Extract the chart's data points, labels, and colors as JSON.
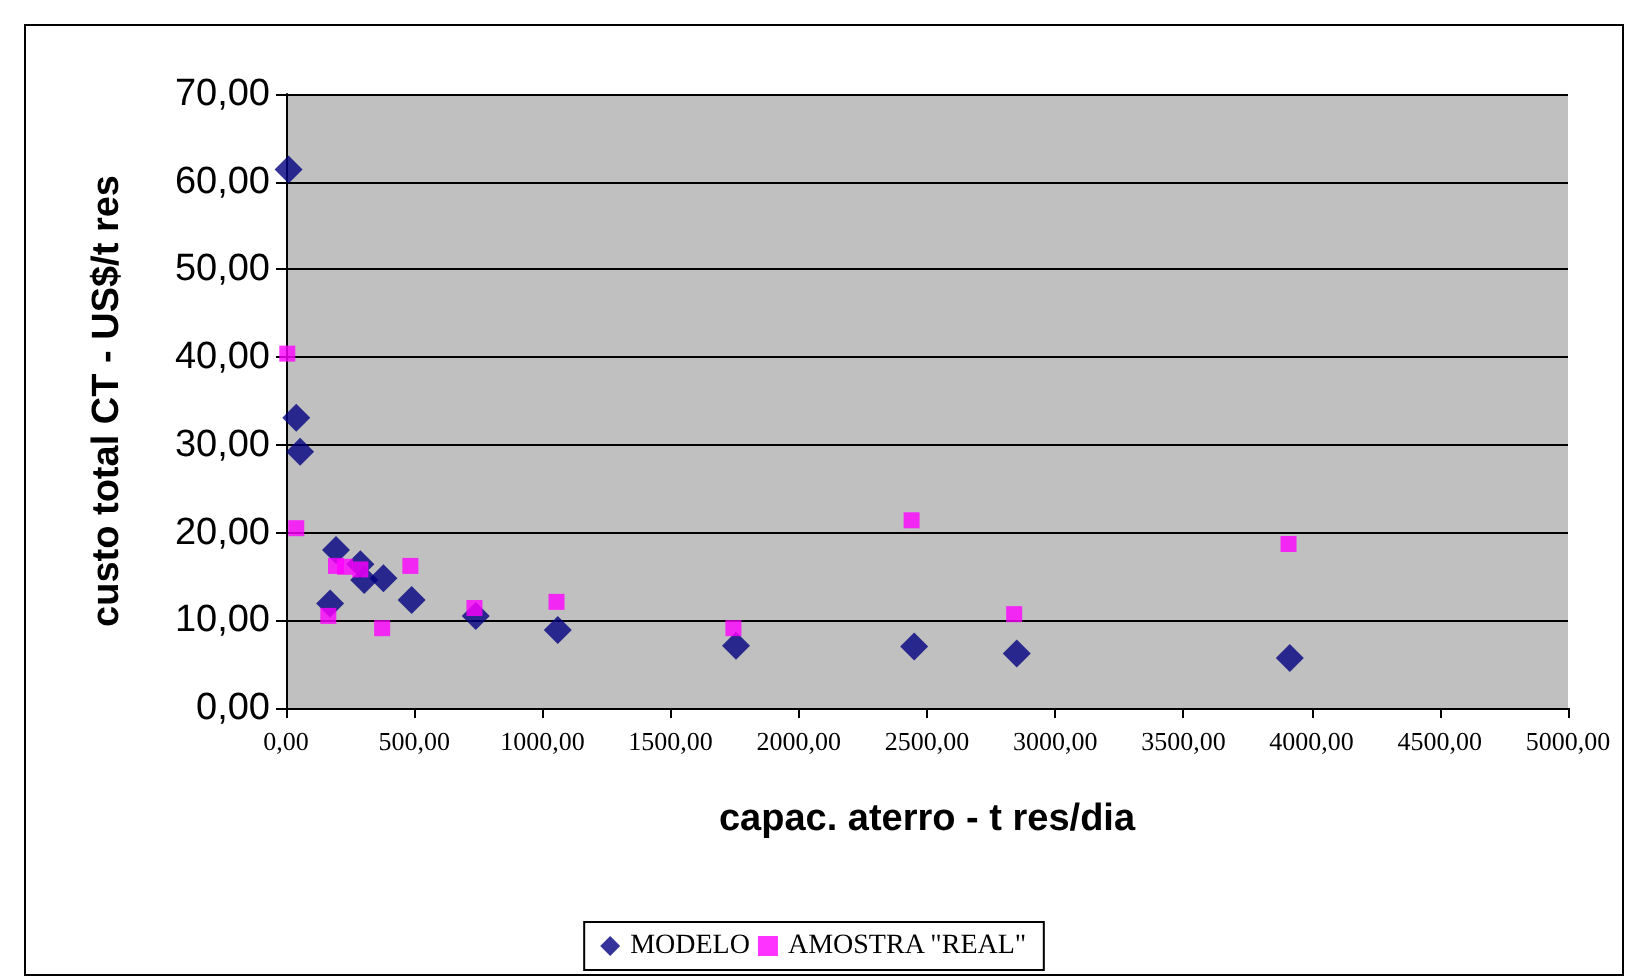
{
  "chart_data": {
    "type": "scatter",
    "xlabel": "capac. aterro - t res/dia",
    "ylabel": "custo total CT - US$/t res",
    "series": [
      {
        "name": "MODELO",
        "color": "#000080",
        "marker": "diamond",
        "x": [
          10,
          40,
          55,
          195,
          172,
          290,
          305,
          380,
          490,
          740,
          1060,
          1755,
          2450,
          2850,
          3915
        ],
        "values": [
          61.4,
          33.1,
          29.2,
          18.0,
          11.9,
          16.4,
          14.6,
          14.8,
          12.3,
          10.5,
          8.9,
          7.1,
          7.0,
          6.2,
          5.7
        ]
      },
      {
        "name": "AMOSTRA \"REAL\"",
        "color": "#ff00ff",
        "marker": "square",
        "x": [
          5,
          40,
          195,
          230,
          290,
          485,
          165,
          375,
          735,
          1055,
          1745,
          2440,
          2840,
          3910
        ],
        "values": [
          40.4,
          20.5,
          16.2,
          16.1,
          15.8,
          16.2,
          10.5,
          9.1,
          11.4,
          12.1,
          9.1,
          21.4,
          10.7,
          18.7
        ]
      }
    ],
    "xlim": [
      0,
      5000
    ],
    "xticks": [
      {
        "value": 0,
        "label": "0,00"
      },
      {
        "value": 500,
        "label": "500,00"
      },
      {
        "value": 1000,
        "label": "1000,00"
      },
      {
        "value": 1500,
        "label": "1500,00"
      },
      {
        "value": 2000,
        "label": "2000,00"
      },
      {
        "value": 2500,
        "label": "2500,00"
      },
      {
        "value": 3000,
        "label": "3000,00"
      },
      {
        "value": 3500,
        "label": "3500,00"
      },
      {
        "value": 4000,
        "label": "4000,00"
      },
      {
        "value": 4500,
        "label": "4500,00"
      },
      {
        "value": 5000,
        "label": "5000,00"
      }
    ],
    "ylim": [
      0,
      70
    ],
    "yticks": [
      {
        "value": 0,
        "label": "0,00"
      },
      {
        "value": 10,
        "label": "10,00"
      },
      {
        "value": 20,
        "label": "20,00"
      },
      {
        "value": 30,
        "label": "30,00"
      },
      {
        "value": 40,
        "label": "40,00"
      },
      {
        "value": 50,
        "label": "50,00"
      },
      {
        "value": 60,
        "label": "60,00"
      },
      {
        "value": 70,
        "label": "70,00"
      }
    ],
    "grid": "y",
    "legend": "bottom"
  }
}
